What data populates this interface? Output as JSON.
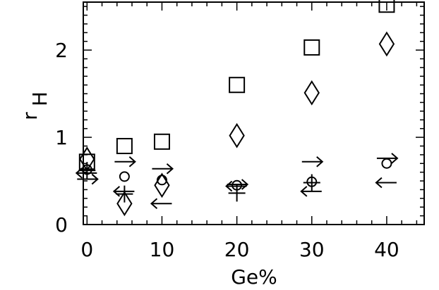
{
  "chart_data": {
    "type": "scatter",
    "xlabel": "Ge%",
    "ylabel_main": "r",
    "ylabel_sub": "H",
    "xlim": [
      -0.5,
      45
    ],
    "ylim": [
      0,
      2.55
    ],
    "xticks": [
      0,
      10,
      20,
      30,
      40
    ],
    "yticks": [
      0,
      1,
      2
    ],
    "xtick_labels": [
      "0",
      "10",
      "20",
      "30",
      "40"
    ],
    "ytick_labels": [
      "0",
      "1",
      "2"
    ],
    "x_minor_step": 2,
    "y_minor_step": 0.1,
    "grid": false,
    "series": [
      {
        "marker": "square",
        "points": [
          {
            "x": 0,
            "y": 0.72
          },
          {
            "x": 5,
            "y": 0.9
          },
          {
            "x": 10,
            "y": 0.95
          },
          {
            "x": 20,
            "y": 1.6
          },
          {
            "x": 30,
            "y": 2.03
          },
          {
            "x": 40,
            "y": 2.52
          }
        ]
      },
      {
        "marker": "diamond",
        "points": [
          {
            "x": 0,
            "y": 0.75
          },
          {
            "x": 5,
            "y": 0.24
          },
          {
            "x": 10,
            "y": 0.45
          },
          {
            "x": 20,
            "y": 1.02
          },
          {
            "x": 30,
            "y": 1.51
          },
          {
            "x": 40,
            "y": 2.07
          }
        ]
      },
      {
        "marker": "circle",
        "points": [
          {
            "x": 0,
            "y": 0.63
          },
          {
            "x": 5,
            "y": 0.55
          },
          {
            "x": 10,
            "y": 0.51
          },
          {
            "x": 20,
            "y": 0.45
          },
          {
            "x": 30,
            "y": 0.49
          },
          {
            "x": 40,
            "y": 0.7
          }
        ]
      },
      {
        "marker": "plus",
        "points": [
          {
            "x": 0,
            "y": 0.62
          },
          {
            "x": 5,
            "y": 0.35
          },
          {
            "x": 20,
            "y": 0.36
          },
          {
            "x": 30,
            "y": 0.48
          }
        ]
      },
      {
        "marker": "arrow-right",
        "points": [
          {
            "x": 0,
            "y": 0.52
          },
          {
            "x": 5,
            "y": 0.72
          },
          {
            "x": 10,
            "y": 0.64
          },
          {
            "x": 20,
            "y": 0.46
          },
          {
            "x": 30,
            "y": 0.72
          },
          {
            "x": 40,
            "y": 0.76
          }
        ]
      },
      {
        "marker": "arrow-left",
        "points": [
          {
            "x": 0,
            "y": 0.59
          },
          {
            "x": 5,
            "y": 0.38
          },
          {
            "x": 10,
            "y": 0.24
          },
          {
            "x": 20,
            "y": 0.44
          },
          {
            "x": 30,
            "y": 0.38
          },
          {
            "x": 40,
            "y": 0.48
          }
        ]
      }
    ]
  }
}
